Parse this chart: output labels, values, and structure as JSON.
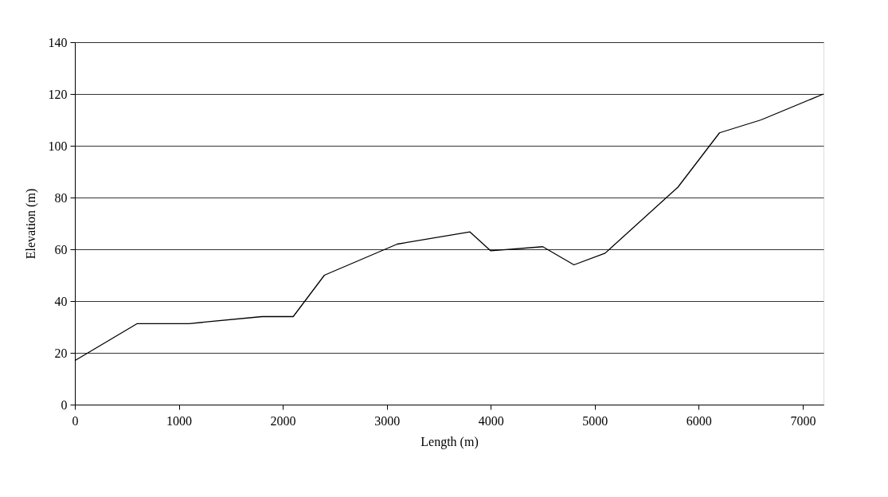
{
  "chart_data": {
    "type": "line",
    "xlabel": "Length (m)",
    "ylabel": "Elevation (m)",
    "x": [
      0,
      600,
      1100,
      1800,
      2100,
      2400,
      3100,
      3800,
      4000,
      4500,
      4800,
      5100,
      5800,
      6200,
      6600,
      7200
    ],
    "series": [
      {
        "color": "#000000",
        "values": [
          17,
          31.3,
          31.3,
          34,
          34,
          50,
          62,
          66.7,
          59.4,
          61,
          54,
          58.5,
          84,
          105,
          110,
          120
        ]
      }
    ],
    "xlim": [
      0,
      7200
    ],
    "xticks": [
      0,
      1000,
      2000,
      3000,
      4000,
      5000,
      6000,
      7000
    ],
    "ylim": [
      0,
      140
    ],
    "yticks": [
      0,
      20,
      40,
      60,
      80,
      100,
      120,
      140
    ],
    "grid": "y",
    "legend": false,
    "marker": "none",
    "line_style": "solid"
  }
}
